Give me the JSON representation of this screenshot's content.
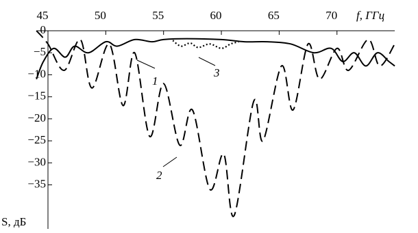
{
  "chart_data": {
    "type": "line",
    "xlabel": "f, ГГц",
    "ylabel": "S, дБ",
    "xlim": [
      44,
      75
    ],
    "ylim": [
      -45,
      0
    ],
    "xticks": [
      45,
      50,
      55,
      60,
      65,
      70
    ],
    "yticks": [
      0,
      {
        "value": -5,
        "label": "−5"
      },
      {
        "value": -10,
        "label": "−10"
      },
      {
        "value": -15,
        "label": "−15"
      },
      {
        "value": -20,
        "label": "−20"
      },
      {
        "value": -25,
        "label": "−25"
      },
      {
        "value": -30,
        "label": "−30"
      },
      {
        "value": -35,
        "label": "−35"
      }
    ],
    "series": [
      {
        "name": "1",
        "color": "#000",
        "dash": "solid",
        "x": [
          44,
          44.6,
          45.5,
          46.5,
          47.3,
          48.5,
          50,
          51,
          52.5,
          54,
          55,
          57,
          60,
          62,
          64,
          66,
          68,
          69.5,
          70.5,
          71.5,
          72.5,
          73.5,
          74.5,
          75
        ],
        "values": [
          -11,
          -7,
          -4,
          -6,
          -3.5,
          -5,
          -2.5,
          -3.5,
          -2,
          -2.5,
          -2,
          -1.8,
          -2,
          -2.5,
          -2.5,
          -3,
          -5,
          -4,
          -7,
          -5,
          -8,
          -5,
          -7,
          -8
        ]
      },
      {
        "name": "2",
        "color": "#000",
        "dash": "dashed",
        "x": [
          44,
          45,
          46.4,
          47.8,
          48.8,
          50.3,
          51.5,
          52.5,
          53.8,
          55,
          56.4,
          57.5,
          59,
          60.2,
          61.1,
          62.8,
          63.6,
          65.2,
          66.2,
          67.5,
          68.5,
          70,
          71,
          72.7,
          73.7,
          75
        ],
        "values": [
          0,
          -3,
          -9,
          -2,
          -13,
          -3,
          -17,
          -5,
          -24,
          -12,
          -26,
          -18,
          -36,
          -28,
          -42,
          -16,
          -25,
          -8,
          -18,
          -3,
          -11,
          -4,
          -9,
          -2,
          -8,
          -3
        ]
      },
      {
        "name": "3",
        "color": "#000",
        "dash": "dotted",
        "x": [
          55.8,
          56.5,
          57.3,
          58,
          59,
          60,
          60.8,
          61.5
        ],
        "values": [
          -2.2,
          -3.5,
          -2.8,
          -3.8,
          -3,
          -4,
          -3,
          -2.5
        ]
      }
    ],
    "annotations": [
      "1",
      "2",
      "3"
    ]
  }
}
